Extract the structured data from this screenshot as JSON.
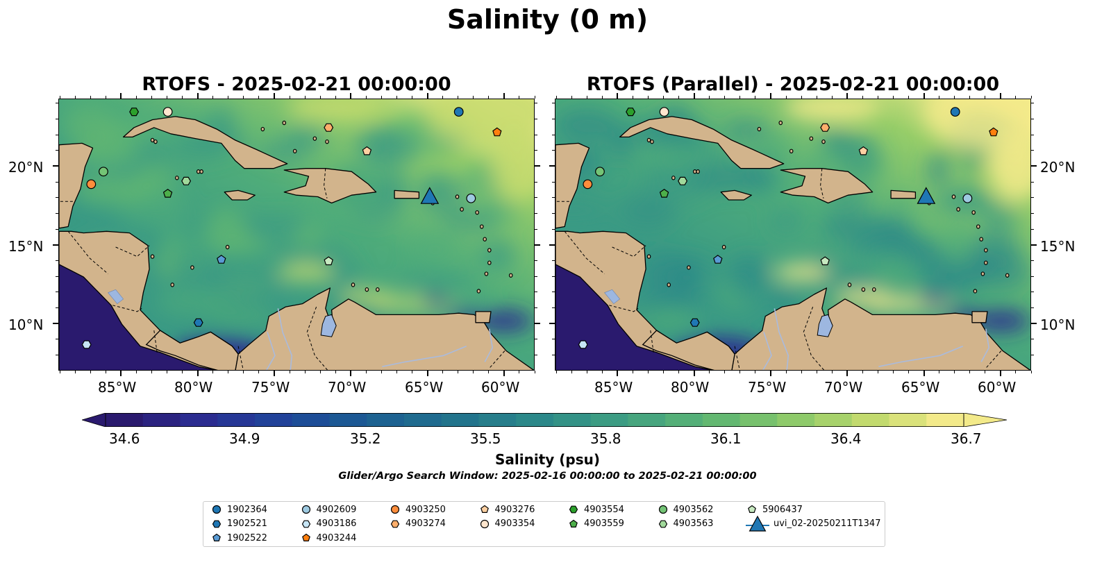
{
  "suptitle": "Salinity (0 m)",
  "panels": [
    {
      "title": "RTOFS - 2025-02-21 00:00:00"
    },
    {
      "title": "RTOFS (Parallel) - 2025-02-21 00:00:00"
    }
  ],
  "axes": {
    "lon_ticks": [
      "85°W",
      "80°W",
      "75°W",
      "70°W",
      "65°W",
      "60°W"
    ],
    "lat_ticks": [
      "20°N",
      "15°N",
      "10°N"
    ]
  },
  "colorbar": {
    "label": "Salinity (psu)",
    "ticks": [
      "34.6",
      "34.9",
      "35.2",
      "35.5",
      "35.8",
      "36.1",
      "36.4",
      "36.7"
    ],
    "colormap": [
      "#2a1a6e",
      "#2c2a8f",
      "#223e9a",
      "#1b5396",
      "#1d6590",
      "#23768c",
      "#2b8889",
      "#3a9a84",
      "#4fac7a",
      "#6bbd6e",
      "#96cd69",
      "#c6db6f",
      "#f3ea8a"
    ],
    "extend": "both"
  },
  "search_window": "Glider/Argo Search Window: 2025-02-16 00:00:00 to 2025-02-21 00:00:00",
  "colors": {
    "land": "#d2b48c",
    "under_min": "#2a1a6e",
    "river": "#aabbdd",
    "lake": "#9db7e0"
  },
  "legend": [
    {
      "label": "1902364",
      "marker": "circle",
      "color": "#1f77b4"
    },
    {
      "label": "1902521",
      "marker": "hexagon",
      "color": "#1f77b4"
    },
    {
      "label": "1902522",
      "marker": "pentagon",
      "color": "#5a9bd4"
    },
    {
      "label": "4902609",
      "marker": "circle",
      "color": "#9ecae1"
    },
    {
      "label": "4903186",
      "marker": "hexagon",
      "color": "#c6e5f5"
    },
    {
      "label": "4903244",
      "marker": "pentagon",
      "color": "#ff7f0e"
    },
    {
      "label": "4903250",
      "marker": "circle",
      "color": "#fd8d3c"
    },
    {
      "label": "4903274",
      "marker": "hexagon",
      "color": "#fdae6b"
    },
    {
      "label": "4903276",
      "marker": "pentagon",
      "color": "#fdd0a2"
    },
    {
      "label": "4903354",
      "marker": "circle",
      "color": "#fee6ce"
    },
    {
      "label": "4903554",
      "marker": "hexagon",
      "color": "#2ca02c"
    },
    {
      "label": "4903559",
      "marker": "pentagon",
      "color": "#4daf4a"
    },
    {
      "label": "4903562",
      "marker": "circle",
      "color": "#74c476"
    },
    {
      "label": "4903563",
      "marker": "hexagon",
      "color": "#a1d99b"
    },
    {
      "label": "5906437",
      "marker": "pentagon",
      "color": "#c7e9c0"
    },
    {
      "label": "uvi_02-20250211T1347",
      "marker": "triangle",
      "color": "#1f77b4"
    }
  ],
  "observations": [
    {
      "id": "1902364",
      "lon": -63.0,
      "lat": 23.5
    },
    {
      "id": "4903554",
      "lon": -84.2,
      "lat": 23.5
    },
    {
      "id": "4903354",
      "lon": -82.0,
      "lat": 23.5
    },
    {
      "id": "4903274",
      "lon": -71.5,
      "lat": 22.5
    },
    {
      "id": "4903244",
      "lon": -60.5,
      "lat": 22.2
    },
    {
      "id": "4903276",
      "lon": -69.0,
      "lat": 21.0
    },
    {
      "id": "4903562",
      "lon": -86.2,
      "lat": 19.7
    },
    {
      "id": "4903563",
      "lon": -80.8,
      "lat": 19.1
    },
    {
      "id": "4903250",
      "lon": -87.0,
      "lat": 18.9
    },
    {
      "id": "4903559",
      "lon": -82.0,
      "lat": 18.3
    },
    {
      "id": "uvi_02-20250211T1347",
      "lon": -64.9,
      "lat": 18.1
    },
    {
      "id": "4902609",
      "lon": -62.2,
      "lat": 18.0
    },
    {
      "id": "1902522",
      "lon": -78.5,
      "lat": 14.1
    },
    {
      "id": "5906437",
      "lon": -71.5,
      "lat": 14.0
    },
    {
      "id": "1902521",
      "lon": -80.0,
      "lat": 10.1
    },
    {
      "id": "4903186",
      "lon": -87.3,
      "lat": 8.7
    }
  ]
}
